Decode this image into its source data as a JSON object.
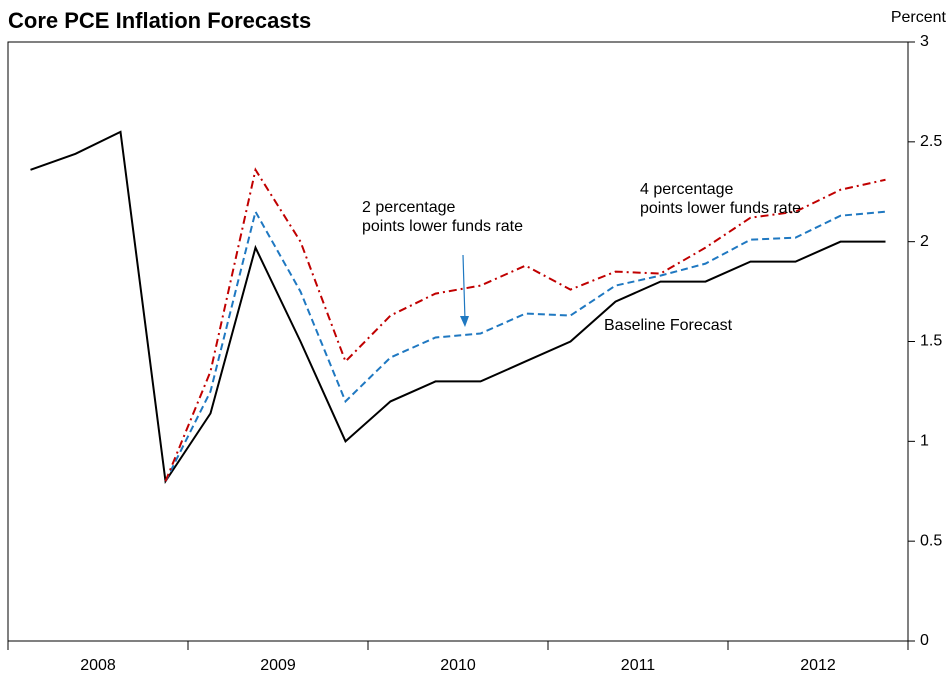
{
  "chart_data": {
    "type": "line",
    "title": "Core PCE Inflation Forecasts",
    "y_axis_label": "Percent",
    "categories": [
      null,
      null,
      null,
      null,
      null,
      null,
      null,
      null,
      null,
      null,
      null,
      null,
      null,
      null,
      null,
      null,
      null,
      null,
      null,
      null
    ],
    "xtick_labels": [
      "2008",
      "2009",
      "2010",
      "2011",
      "2012"
    ],
    "series": [
      {
        "name": "Baseline Forecast",
        "color": "#000000",
        "dash": "solid",
        "values": [
          2.36,
          2.44,
          2.55,
          0.8,
          1.14,
          1.97,
          1.5,
          1.0,
          1.2,
          1.3,
          1.3,
          1.4,
          1.5,
          1.7,
          1.8,
          1.8,
          1.9,
          1.9,
          2.0,
          2.0
        ]
      },
      {
        "name": "2 percentage points lower funds rate",
        "color": "#1f78c1",
        "dash": "dashed",
        "values": [
          null,
          null,
          null,
          0.8,
          1.25,
          2.15,
          1.75,
          1.2,
          1.42,
          1.52,
          1.54,
          1.64,
          1.63,
          1.78,
          1.83,
          1.89,
          2.01,
          2.02,
          2.13,
          2.15
        ]
      },
      {
        "name": "4 percentage points lower funds rate",
        "color": "#c00000",
        "dash": "dashdot",
        "values": [
          null,
          null,
          null,
          0.8,
          1.35,
          2.36,
          2.0,
          1.4,
          1.63,
          1.74,
          1.78,
          1.88,
          1.76,
          1.85,
          1.84,
          1.97,
          2.12,
          2.15,
          2.26,
          2.31
        ]
      }
    ],
    "annotations": [
      {
        "lines": [
          "Baseline Forecast"
        ]
      },
      {
        "lines": [
          "2 percentage",
          "points lower funds rate"
        ]
      },
      {
        "lines": [
          "4 percentage",
          "points lower funds rate"
        ]
      }
    ],
    "ylim": [
      0,
      3
    ],
    "yticks": [
      0,
      0.5,
      1,
      1.5,
      2,
      2.5,
      3
    ],
    "grid": false
  }
}
